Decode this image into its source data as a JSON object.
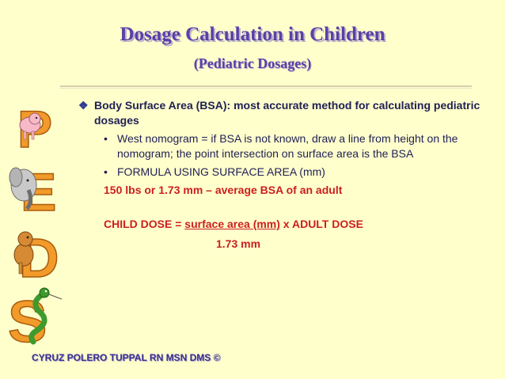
{
  "slide": {
    "title": "Dosage Calculation in Children",
    "subtitle": "(Pediatric Dosages)",
    "bullet_main": "Body Surface Area (BSA): most accurate method for calculating pediatric dosages",
    "sub_bullets": [
      "West nomogram = if BSA is not known, draw a line from height on the nomogram; the point intersection on surface area is the BSA",
      "FORMULA USING SURFACE AREA (mm)"
    ],
    "average_bsa": "150 lbs or 1.73 mm – average BSA of an adult",
    "child_dose_label": "CHILD DOSE = ",
    "child_dose_numerator": "surface area (mm)",
    "child_dose_tail": " x ADULT DOSE",
    "child_dose_denominator": "1.73 mm",
    "footer": "CYRUZ POLERO TUPPAL RN MSN DMS ©"
  },
  "decorations": {
    "letters": [
      "P",
      "E",
      "D",
      "S"
    ],
    "icons": [
      "pig-letter-p-icon",
      "elephant-letter-e-icon",
      "dog-letter-d-icon",
      "snake-letter-s-icon"
    ]
  },
  "colors": {
    "background": "#ffffcc",
    "title": "#5b3fa8",
    "body": "#1f1f55",
    "accent_red": "#cc1f1f",
    "letter_orange": "#f29a2a"
  }
}
